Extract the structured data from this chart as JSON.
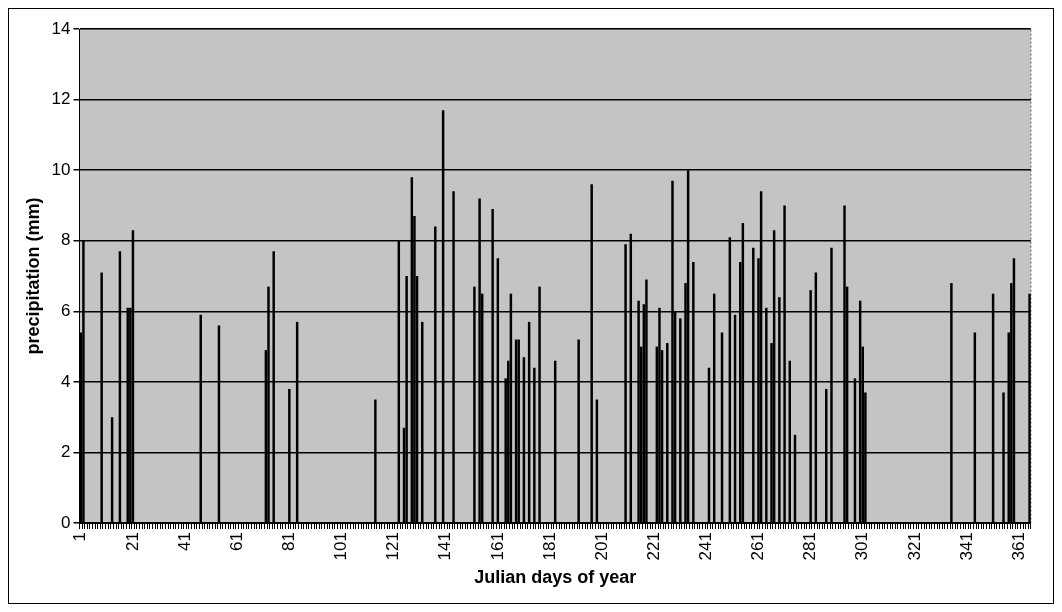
{
  "chart_data": {
    "type": "bar",
    "xlabel": "Julian days of year",
    "ylabel": "precipitation (mm)",
    "categories": [
      "1",
      null,
      null,
      null,
      null,
      null,
      null,
      null,
      null,
      null,
      null,
      null,
      null,
      null,
      null,
      null,
      null,
      null,
      null,
      null,
      "21",
      null,
      null,
      null,
      null,
      null,
      null,
      null,
      null,
      null,
      null,
      null,
      null,
      null,
      null,
      null,
      null,
      null,
      null,
      null,
      "41",
      null,
      null,
      null,
      null,
      null,
      null,
      null,
      null,
      null,
      null,
      null,
      null,
      null,
      null,
      null,
      null,
      null,
      null,
      null,
      "61",
      null,
      null,
      null,
      null,
      null,
      null,
      null,
      null,
      null,
      null,
      null,
      null,
      null,
      null,
      null,
      null,
      null,
      null,
      null,
      "81",
      null,
      null,
      null,
      null,
      null,
      null,
      null,
      null,
      null,
      null,
      null,
      null,
      null,
      null,
      null,
      null,
      null,
      null,
      null,
      "101",
      null,
      null,
      null,
      null,
      null,
      null,
      null,
      null,
      null,
      null,
      null,
      null,
      null,
      null,
      null,
      null,
      null,
      null,
      null,
      "121",
      null,
      null,
      null,
      null,
      null,
      null,
      null,
      null,
      null,
      null,
      null,
      null,
      null,
      null,
      null,
      null,
      null,
      null,
      null,
      "141",
      null,
      null,
      null,
      null,
      null,
      null,
      null,
      null,
      null,
      null,
      null,
      null,
      null,
      null,
      null,
      null,
      null,
      null,
      null,
      "161",
      null,
      null,
      null,
      null,
      null,
      null,
      null,
      null,
      null,
      null,
      null,
      null,
      null,
      null,
      null,
      null,
      null,
      null,
      null,
      "181",
      null,
      null,
      null,
      null,
      null,
      null,
      null,
      null,
      null,
      null,
      null,
      null,
      null,
      null,
      null,
      null,
      null,
      null,
      null,
      "201",
      null,
      null,
      null,
      null,
      null,
      null,
      null,
      null,
      null,
      null,
      null,
      null,
      null,
      null,
      null,
      null,
      null,
      null,
      null,
      "221",
      null,
      null,
      null,
      null,
      null,
      null,
      null,
      null,
      null,
      null,
      null,
      null,
      null,
      null,
      null,
      null,
      null,
      null,
      null,
      "241",
      null,
      null,
      null,
      null,
      null,
      null,
      null,
      null,
      null,
      null,
      null,
      null,
      null,
      null,
      null,
      null,
      null,
      null,
      null,
      "261",
      null,
      null,
      null,
      null,
      null,
      null,
      null,
      null,
      null,
      null,
      null,
      null,
      null,
      null,
      null,
      null,
      null,
      null,
      null,
      "281",
      null,
      null,
      null,
      null,
      null,
      null,
      null,
      null,
      null,
      null,
      null,
      null,
      null,
      null,
      null,
      null,
      null,
      null,
      null,
      "301",
      null,
      null,
      null,
      null,
      null,
      null,
      null,
      null,
      null,
      null,
      null,
      null,
      null,
      null,
      null,
      null,
      null,
      null,
      null,
      "321",
      null,
      null,
      null,
      null,
      null,
      null,
      null,
      null,
      null,
      null,
      null,
      null,
      null,
      null,
      null,
      null,
      null,
      null,
      null,
      "341",
      null,
      null,
      null,
      null,
      null,
      null,
      null,
      null,
      null,
      null,
      null,
      null,
      null,
      null,
      null,
      null,
      null,
      null,
      null,
      "361",
      null,
      null,
      null,
      null
    ],
    "values": [
      5.4,
      8,
      0,
      0,
      0,
      0,
      0,
      0,
      7.1,
      0,
      0,
      0,
      3,
      0,
      0,
      7.7,
      0,
      0,
      6.1,
      6.1,
      8.3,
      0,
      0,
      0,
      0,
      0,
      0,
      0,
      0,
      0,
      0,
      0,
      0,
      0,
      0,
      0,
      0,
      0,
      0,
      0,
      0,
      0,
      0,
      0,
      0,
      0,
      5.9,
      0,
      0,
      0,
      0,
      0,
      0,
      5.6,
      0,
      0,
      0,
      0,
      0,
      0,
      0,
      0,
      0,
      0,
      0,
      0,
      0,
      0,
      0,
      0,
      0,
      4.9,
      6.7,
      0,
      7.7,
      0,
      0,
      0,
      0,
      0,
      3.8,
      0,
      0,
      5.7,
      0,
      0,
      0,
      0,
      0,
      0,
      0,
      0,
      0,
      0,
      0,
      0,
      0,
      0,
      0,
      0,
      0,
      0,
      0,
      0,
      0,
      0,
      0,
      0,
      0,
      0,
      0,
      0,
      0,
      3.5,
      0,
      0,
      0,
      0,
      0,
      0,
      0,
      0,
      8,
      0,
      2.7,
      7,
      0,
      9.8,
      8.7,
      7,
      0,
      5.7,
      0,
      0,
      0,
      0,
      8.4,
      0,
      0,
      11.7,
      0,
      0,
      0,
      9.4,
      0,
      0,
      0,
      0,
      0,
      0,
      0,
      6.7,
      0,
      9.2,
      6.5,
      0,
      0,
      0,
      8.9,
      0,
      7.5,
      0,
      0,
      4.1,
      4.6,
      6.5,
      0,
      5.2,
      5.2,
      0,
      4.7,
      0,
      5.7,
      0,
      4.4,
      0,
      6.7,
      0,
      0,
      0,
      0,
      0,
      4.6,
      0,
      0,
      0,
      0,
      0,
      0,
      0,
      0,
      5.2,
      0,
      0,
      0,
      0,
      9.6,
      0,
      3.5,
      0,
      0,
      0,
      0,
      0,
      0,
      0,
      0,
      0,
      0,
      7.9,
      0,
      8.2,
      0,
      0,
      6.3,
      5,
      6.2,
      6.9,
      0,
      0,
      0,
      5,
      6.1,
      4.9,
      0,
      5.1,
      0,
      9.7,
      6,
      0,
      5.8,
      0,
      6.8,
      10,
      0,
      7.4,
      0,
      0,
      0,
      0,
      0,
      4.4,
      0,
      6.5,
      0,
      0,
      5.4,
      0,
      0,
      8.1,
      0,
      5.9,
      0,
      7.4,
      8.5,
      0,
      0,
      0,
      7.8,
      0,
      7.5,
      9.4,
      0,
      6.1,
      0,
      5.1,
      8.3,
      0,
      6.4,
      0,
      9,
      0,
      4.6,
      0,
      2.5,
      0,
      0,
      0,
      0,
      0,
      6.6,
      0,
      7.1,
      0,
      0,
      0,
      3.8,
      0,
      7.8,
      0,
      0,
      0,
      0,
      9,
      6.7,
      0,
      0,
      4.1,
      0,
      6.3,
      5,
      3.7,
      0,
      0,
      0,
      0,
      0,
      0,
      0,
      0,
      0,
      0,
      0,
      0,
      0,
      0,
      0,
      0,
      0,
      0,
      0,
      0,
      0,
      0,
      0,
      0,
      0,
      0,
      0,
      0,
      0,
      0,
      0,
      0,
      6.8,
      0,
      0,
      0,
      0,
      0,
      0,
      0,
      0,
      5.4,
      0,
      0,
      0,
      0,
      0,
      0,
      6.5,
      0,
      0,
      0,
      3.7,
      0,
      5.4,
      6.8,
      7.5,
      0,
      0,
      0,
      0,
      0,
      6.5
    ],
    "color": "#000000",
    "ylim": [
      0,
      14
    ],
    "yticks": [
      0,
      2,
      4,
      6,
      8,
      10,
      12,
      14
    ],
    "grid": "y",
    "legend": false
  }
}
